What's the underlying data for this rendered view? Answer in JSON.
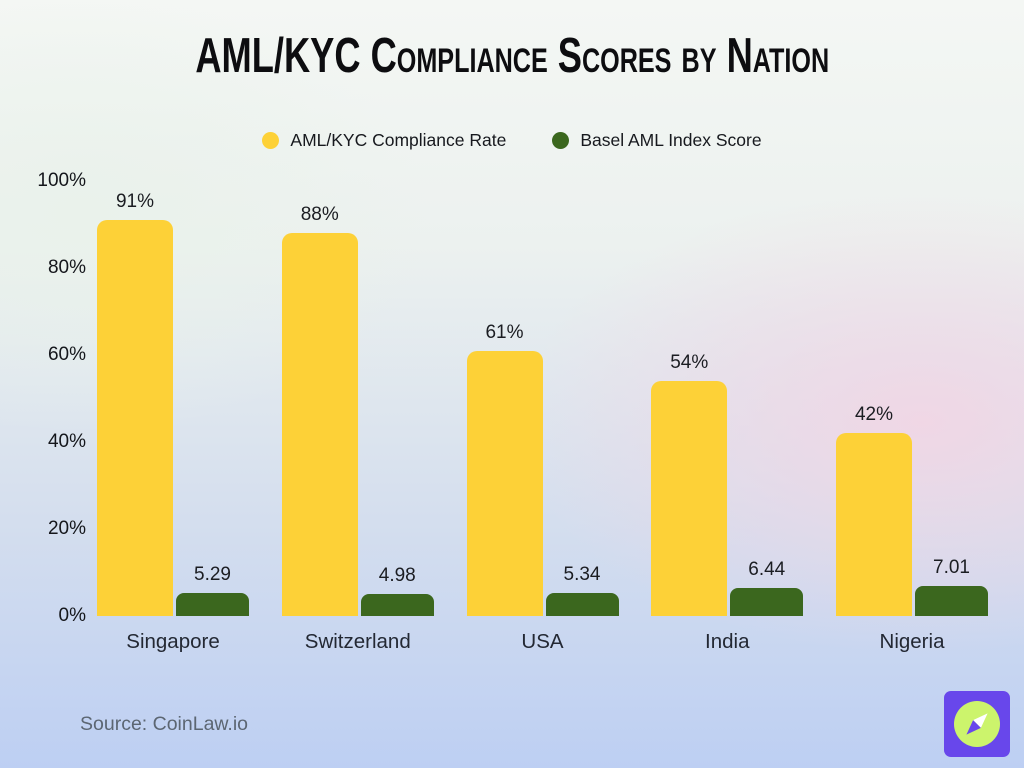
{
  "title": "AML/KYC Compliance Scores by Nation",
  "legend": [
    {
      "label": "AML/KYC Compliance Rate",
      "color": "#FDD137"
    },
    {
      "label": "Basel AML Index Score",
      "color": "#3B671E"
    }
  ],
  "chart_data": {
    "type": "bar",
    "title": "AML/KYC Compliance Scores by Nation",
    "categories": [
      "Singapore",
      "Switzerland",
      "USA",
      "India",
      "Nigeria"
    ],
    "series": [
      {
        "name": "AML/KYC Compliance Rate",
        "color": "#FDD137",
        "values": [
          91,
          88,
          61,
          54,
          42
        ],
        "labels": [
          "91%",
          "88%",
          "61%",
          "54%",
          "42%"
        ]
      },
      {
        "name": "Basel AML Index Score",
        "color": "#3B671E",
        "values": [
          5.29,
          4.98,
          5.34,
          6.44,
          7.01
        ],
        "labels": [
          "5.29",
          "4.98",
          "5.34",
          "6.44",
          "7.01"
        ]
      }
    ],
    "y_ticks": [
      "100%",
      "80%",
      "60%",
      "40%",
      "20%",
      "0%"
    ],
    "ylim": [
      0,
      100
    ],
    "xlabel": "",
    "ylabel": "",
    "grid": false,
    "legend_position": "top-center"
  },
  "source": "Source: CoinLaw.io",
  "logo": {
    "background": "#6847EB",
    "circle_color": "#CCF46C",
    "needle_north_color": "#FFFFFF",
    "needle_south_color": "#6847EB"
  }
}
